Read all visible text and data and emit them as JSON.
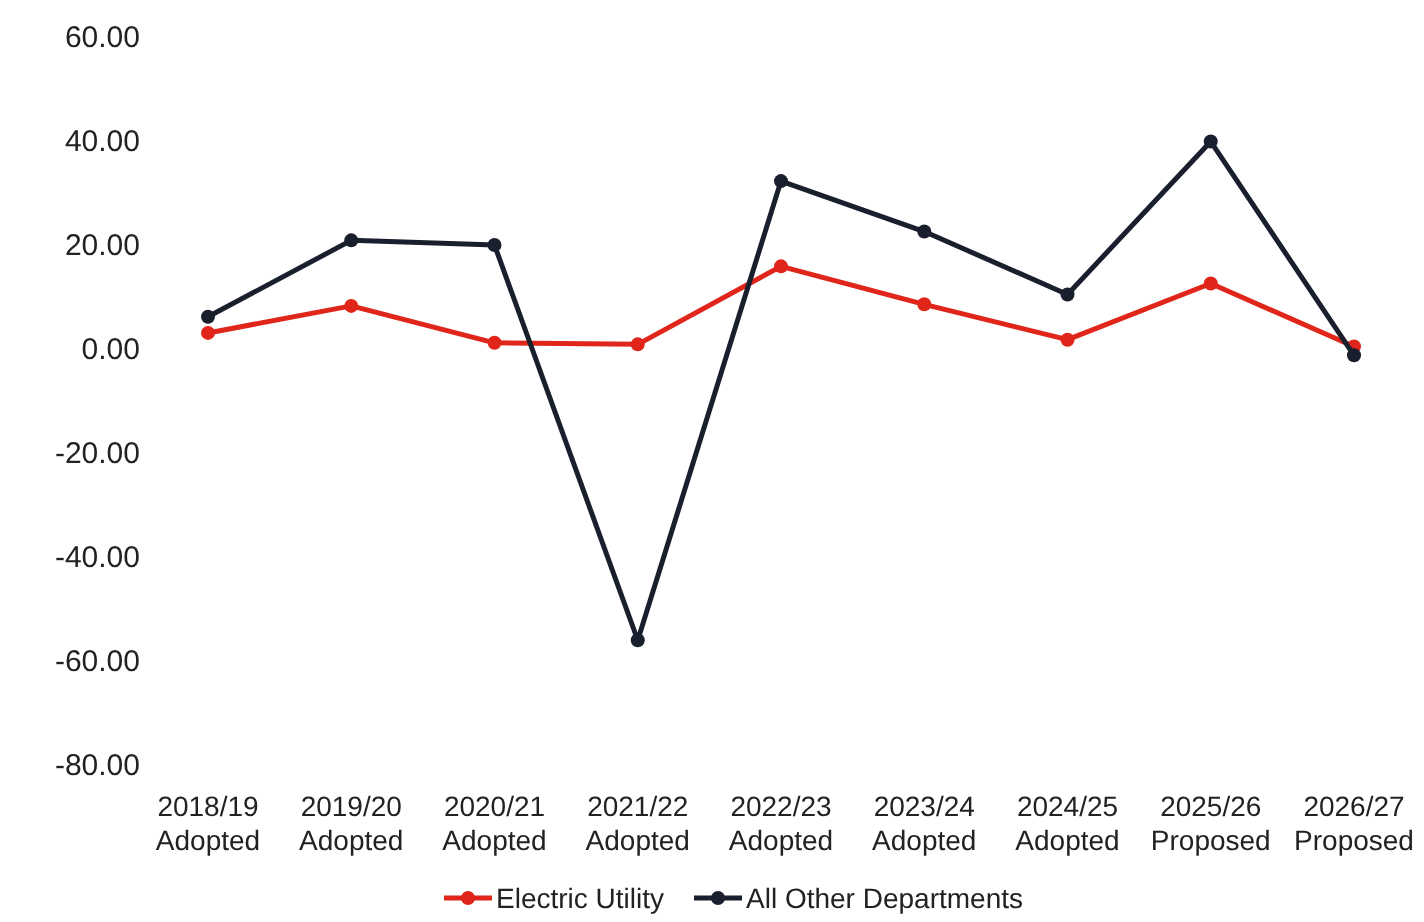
{
  "chart_data": {
    "type": "line",
    "categories": [
      "2018/19\nAdopted",
      "2019/20\nAdopted",
      "2020/21\nAdopted",
      "2021/22\nAdopted",
      "2022/23\nAdopted",
      "2023/24\nAdopted",
      "2024/25\nAdopted",
      "2025/26\nProposed",
      "2026/27\nProposed"
    ],
    "series": [
      {
        "name": "Electric Utility",
        "color": "#e0261a",
        "values": [
          2.9,
          8.1,
          1.0,
          0.7,
          15.7,
          8.4,
          1.6,
          12.4,
          0.3
        ]
      },
      {
        "name": "All Other Departments",
        "color": "#1a1f2e",
        "values": [
          6.0,
          20.7,
          19.8,
          -56.2,
          32.1,
          22.4,
          10.3,
          39.7,
          -1.4
        ]
      }
    ],
    "ylim": [
      -80,
      60
    ],
    "yticks": [
      {
        "value": -80,
        "label": "-80.00"
      },
      {
        "value": -60,
        "label": "-60.00"
      },
      {
        "value": -40,
        "label": "-40.00"
      },
      {
        "value": -20,
        "label": "-20.00"
      },
      {
        "value": 0,
        "label": "0.00"
      },
      {
        "value": 20,
        "label": "20.00"
      },
      {
        "value": 40,
        "label": "40.00"
      },
      {
        "value": 60,
        "label": "60.00"
      }
    ],
    "grid": false,
    "legend": "bottom",
    "marker": "circle",
    "line_style": "solid"
  }
}
